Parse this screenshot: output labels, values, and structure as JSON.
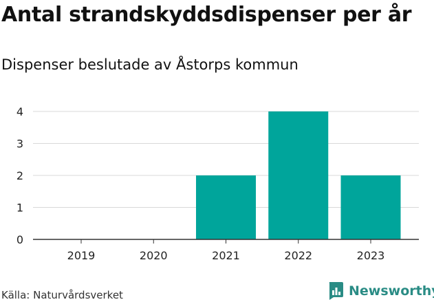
{
  "header": {
    "title": "Antal strandskyddsdispenser per år",
    "subtitle": "Dispenser beslutade av Åstorps kommun"
  },
  "footer": {
    "source": "Källa: Naturvårdsverket",
    "brand": "Newsworthy",
    "brand_icon": "bar-chart-speech-bubble-icon",
    "brand_color": "#2a8c85"
  },
  "colors": {
    "bar": "#00a59b",
    "grid": "#d9d9d9",
    "axis": "#333333"
  },
  "chart_data": {
    "type": "bar",
    "title": "Antal strandskyddsdispenser per år",
    "subtitle": "Dispenser beslutade av Åstorps kommun",
    "categories": [
      "2019",
      "2020",
      "2021",
      "2022",
      "2023"
    ],
    "values": [
      0,
      0,
      2,
      4,
      2
    ],
    "xlabel": "",
    "ylabel": "",
    "ylim": [
      0,
      4
    ],
    "yticks": [
      0,
      1,
      2,
      3,
      4
    ],
    "grid": true
  }
}
